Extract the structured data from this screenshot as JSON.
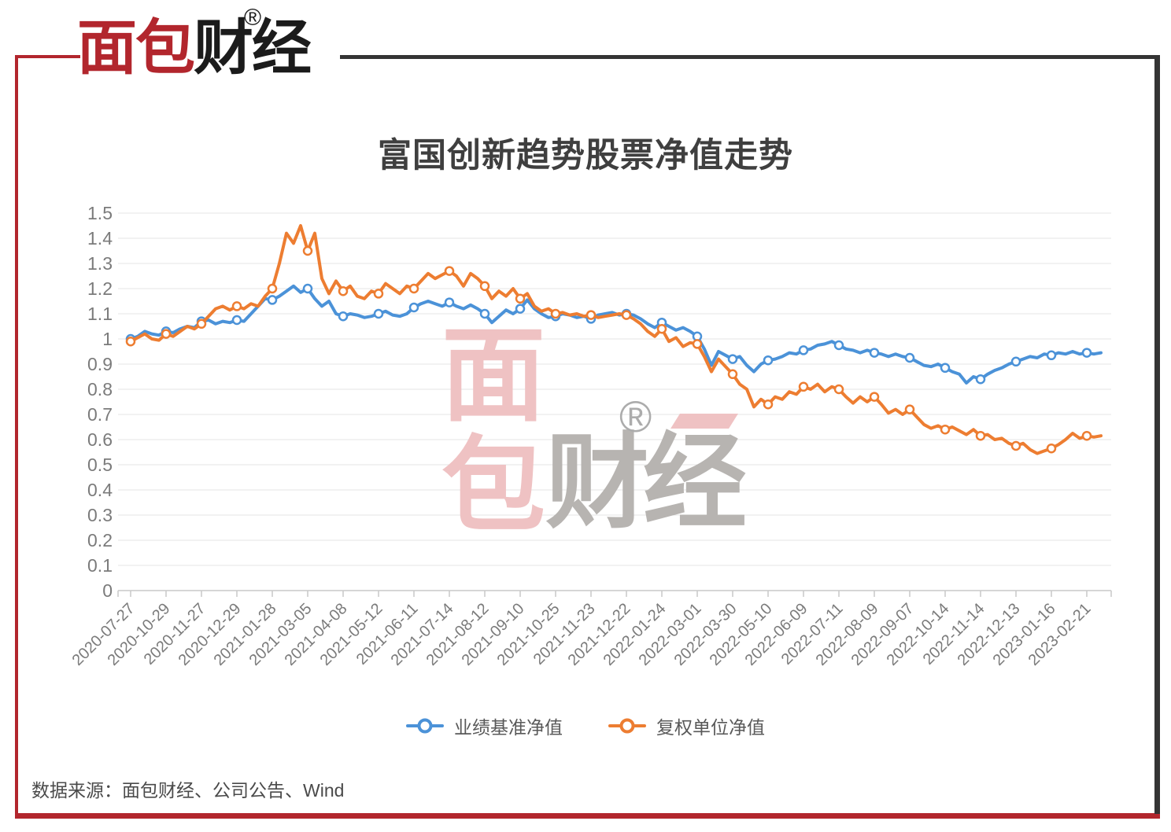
{
  "brand": {
    "logo_first": "面包",
    "logo_second": "财经",
    "registered_mark": "®",
    "red": "#B2262D",
    "dark": "#343434"
  },
  "title": "富国创新趋势股票净值走势",
  "watermark": {
    "char_1": "面",
    "char_2": "包",
    "char_34": "财经",
    "registered_mark": "®",
    "pink": "#EFC2C3",
    "gray": "#B7B4B1"
  },
  "legend": {
    "items": [
      {
        "label": "业绩基准净值"
      },
      {
        "label": "复权单位净值"
      }
    ]
  },
  "source_note": "数据来源：面包财经、公司公告、Wind",
  "chart_data": {
    "type": "line",
    "title": "富国创新趋势股票净值走势",
    "ylim": [
      0,
      1.5
    ],
    "y_tick_step": 0.1,
    "grid": "horizontal",
    "legend_position": "bottom-center",
    "x_tick_labels": [
      "2020-07-27",
      "2020-10-29",
      "2020-11-27",
      "2020-12-29",
      "2021-01-28",
      "2021-03-05",
      "2021-04-08",
      "2021-05-12",
      "2021-06-11",
      "2021-07-14",
      "2021-08-12",
      "2021-09-10",
      "2021-10-25",
      "2021-11-23",
      "2021-12-22",
      "2022-01-24",
      "2022-03-01",
      "2022-03-30",
      "2022-05-10",
      "2022-06-09",
      "2022-07-11",
      "2022-08-09",
      "2022-09-07",
      "2022-10-14",
      "2022-11-14",
      "2022-12-13",
      "2023-01-16",
      "2023-02-21"
    ],
    "points_per_tick": 5,
    "series": [
      {
        "name": "业绩基准净值",
        "color": "#4B92D8",
        "values": [
          1.0,
          1.01,
          1.03,
          1.02,
          1.015,
          1.03,
          1.025,
          1.04,
          1.05,
          1.045,
          1.07,
          1.075,
          1.06,
          1.07,
          1.065,
          1.075,
          1.07,
          1.1,
          1.13,
          1.16,
          1.155,
          1.17,
          1.19,
          1.21,
          1.185,
          1.2,
          1.16,
          1.13,
          1.15,
          1.1,
          1.09,
          1.1,
          1.095,
          1.085,
          1.09,
          1.1,
          1.11,
          1.095,
          1.09,
          1.1,
          1.125,
          1.14,
          1.15,
          1.14,
          1.13,
          1.145,
          1.13,
          1.12,
          1.135,
          1.12,
          1.1,
          1.065,
          1.09,
          1.115,
          1.1,
          1.12,
          1.155,
          1.12,
          1.1,
          1.085,
          1.09,
          1.1,
          1.095,
          1.085,
          1.09,
          1.08,
          1.095,
          1.1,
          1.105,
          1.095,
          1.1,
          1.095,
          1.08,
          1.06,
          1.045,
          1.065,
          1.05,
          1.035,
          1.045,
          1.03,
          1.01,
          0.96,
          0.895,
          0.95,
          0.935,
          0.92,
          0.93,
          0.895,
          0.87,
          0.9,
          0.915,
          0.92,
          0.93,
          0.945,
          0.94,
          0.955,
          0.96,
          0.975,
          0.98,
          0.99,
          0.975,
          0.96,
          0.955,
          0.945,
          0.955,
          0.945,
          0.94,
          0.93,
          0.94,
          0.93,
          0.925,
          0.91,
          0.895,
          0.89,
          0.9,
          0.885,
          0.87,
          0.86,
          0.825,
          0.85,
          0.84,
          0.86,
          0.875,
          0.885,
          0.9,
          0.91,
          0.92,
          0.93,
          0.925,
          0.94,
          0.935,
          0.945,
          0.94,
          0.95,
          0.94,
          0.945,
          0.94,
          0.945
        ]
      },
      {
        "name": "复权单位净值",
        "color": "#ED7D31",
        "values": [
          0.99,
          1.005,
          1.02,
          1.0,
          0.995,
          1.02,
          1.01,
          1.03,
          1.05,
          1.04,
          1.06,
          1.09,
          1.12,
          1.13,
          1.115,
          1.13,
          1.12,
          1.14,
          1.13,
          1.17,
          1.2,
          1.3,
          1.42,
          1.38,
          1.45,
          1.35,
          1.42,
          1.24,
          1.18,
          1.23,
          1.19,
          1.21,
          1.17,
          1.16,
          1.19,
          1.18,
          1.22,
          1.2,
          1.18,
          1.21,
          1.2,
          1.23,
          1.26,
          1.24,
          1.255,
          1.27,
          1.25,
          1.21,
          1.26,
          1.24,
          1.21,
          1.16,
          1.19,
          1.17,
          1.2,
          1.16,
          1.18,
          1.13,
          1.11,
          1.12,
          1.1,
          1.105,
          1.095,
          1.1,
          1.09,
          1.095,
          1.085,
          1.09,
          1.095,
          1.1,
          1.095,
          1.08,
          1.06,
          1.03,
          1.01,
          1.04,
          0.99,
          1.005,
          0.97,
          0.985,
          0.98,
          0.93,
          0.87,
          0.92,
          0.89,
          0.86,
          0.82,
          0.8,
          0.73,
          0.76,
          0.74,
          0.77,
          0.76,
          0.79,
          0.78,
          0.81,
          0.8,
          0.82,
          0.79,
          0.81,
          0.8,
          0.77,
          0.745,
          0.77,
          0.75,
          0.77,
          0.74,
          0.705,
          0.72,
          0.7,
          0.72,
          0.69,
          0.66,
          0.645,
          0.655,
          0.64,
          0.65,
          0.635,
          0.62,
          0.64,
          0.615,
          0.62,
          0.6,
          0.605,
          0.585,
          0.575,
          0.585,
          0.56,
          0.545,
          0.555,
          0.565,
          0.58,
          0.6,
          0.625,
          0.605,
          0.615,
          0.61,
          0.615
        ]
      }
    ],
    "axis_colors": {
      "grid": "#E4E4E4",
      "axis": "#C8C8C8",
      "tick_text": "#7b7b7b"
    }
  }
}
